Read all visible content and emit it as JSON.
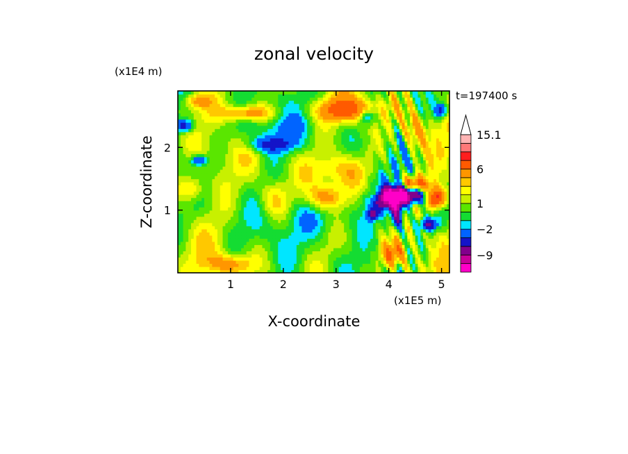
{
  "chart_data": {
    "type": "heatmap",
    "title": "zonal velocity",
    "xlabel": "X-coordinate",
    "ylabel": "Z-coordinate",
    "x_unit": "(x1E5 m)",
    "y_unit": "(x1E4 m)",
    "time_label": "t=197400 s",
    "xlim": [
      0,
      5.15
    ],
    "ylim": [
      0,
      2.9
    ],
    "x_ticks": [
      1,
      2,
      3,
      4,
      5
    ],
    "y_ticks": [
      1,
      2
    ],
    "colorbar": {
      "labels": [
        "15.1",
        "6",
        "1",
        "−2",
        "−9"
      ],
      "label_values": [
        15.1,
        6,
        1,
        -2,
        -9
      ],
      "levels": [
        -15,
        -12,
        -9,
        -6,
        -4,
        -2,
        -1,
        0,
        1,
        2,
        3,
        4,
        6,
        9,
        12,
        15.1
      ],
      "colors": [
        "#ff00c8",
        "#c8009a",
        "#82008c",
        "#1414c8",
        "#0064ff",
        "#00e6ff",
        "#14dc32",
        "#5ae600",
        "#c8f000",
        "#ffff00",
        "#ffc800",
        "#ff9600",
        "#ff5a00",
        "#ff1e1e",
        "#ff7878",
        "#ffb4b4"
      ]
    },
    "value_range": [
      -15,
      15.1
    ],
    "grid": false
  }
}
